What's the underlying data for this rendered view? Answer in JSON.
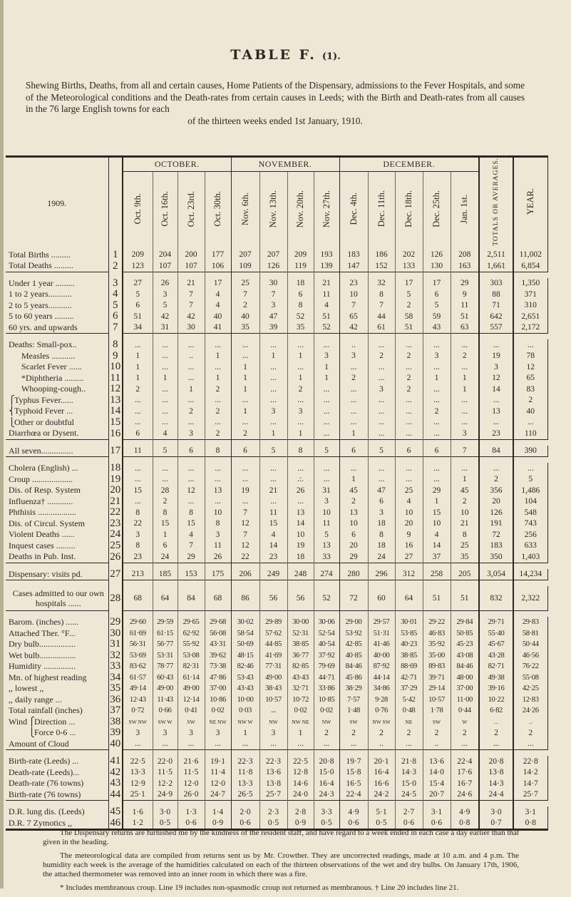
{
  "title": "TABLE F.",
  "title_suffix": "(1).",
  "intro": "Shewing Births, Deaths, from all and certain causes, Home Patients of the Dispensary, admissions to the Fever Hospitals, and some of the Meteorological conditions and the Death-rates from certain causes in Leeds; with the Birth and Death-rates from all causes in the 76 large English towns for each",
  "intro_last": "of the thirteen weeks ended 1st January, 1910.",
  "table": {
    "year_label": "1909.",
    "months": [
      "OCTOBER.",
      "NOVEMBER.",
      "DECEMBER."
    ],
    "columns": [
      "Oct.  9th.",
      "Oct.  16th.",
      "Oct.  23rd.",
      "Oct.  30th.",
      "Nov.  6th.",
      "Nov.  13th.",
      "Nov.  20th.",
      "Nov.  27th.",
      "Dec.  4th.",
      "Dec.  11th.",
      "Dec.  18th.",
      "Dec.  25th.",
      "Jan.  1st.",
      "TOTALS OR AVERAGES.",
      "YEAR."
    ],
    "rows": [
      {
        "n": "1",
        "label": "Total Births .........",
        "v": [
          "209",
          "204",
          "200",
          "177",
          "207",
          "207",
          "209",
          "193",
          "183",
          "186",
          "202",
          "126",
          "208",
          "2,511",
          "11,002"
        ]
      },
      {
        "n": "2",
        "label": "Total Deaths .........",
        "v": [
          "123",
          "107",
          "107",
          "106",
          "109",
          "126",
          "119",
          "139",
          "147",
          "152",
          "133",
          "130",
          "163",
          "1,661",
          "6,854"
        ]
      },
      {
        "n": "3",
        "label": "Under 1 year .........",
        "v": [
          "27",
          "26",
          "21",
          "17",
          "25",
          "30",
          "18",
          "21",
          "23",
          "32",
          "17",
          "17",
          "29",
          "303",
          "1,350"
        ],
        "sep": true
      },
      {
        "n": "4",
        "label": "1 to 2 years...........",
        "v": [
          "5",
          "3",
          "7",
          "4",
          "7",
          "7",
          "6",
          "11",
          "10",
          "8",
          "5",
          "6",
          "9",
          "88",
          "371"
        ]
      },
      {
        "n": "5",
        "label": "2 to 5 years...........",
        "v": [
          "6",
          "5",
          "7",
          "4",
          "2",
          "3",
          "8",
          "4",
          "7",
          "7",
          "2",
          "5",
          "11",
          "71",
          "310"
        ]
      },
      {
        "n": "6",
        "label": "5 to 60 years .........",
        "v": [
          "51",
          "42",
          "42",
          "40",
          "40",
          "47",
          "52",
          "51",
          "65",
          "44",
          "58",
          "59",
          "51",
          "642",
          "2,651"
        ]
      },
      {
        "n": "7",
        "label": "60 yrs. and upwards",
        "v": [
          "34",
          "31",
          "30",
          "41",
          "35",
          "39",
          "35",
          "52",
          "42",
          "61",
          "51",
          "43",
          "63",
          "557",
          "2,172"
        ]
      },
      {
        "n": "8",
        "label": "Deaths: Small-pox..",
        "v": [
          "...",
          "...",
          "...",
          "...",
          "...",
          "...",
          "...",
          "...",
          "..",
          "...",
          "...",
          "...",
          "...",
          "...",
          "..."
        ],
        "sep": true
      },
      {
        "n": "9",
        "label": "Measles ...........",
        "indent": true,
        "v": [
          "1",
          "...",
          "..",
          "1",
          "...",
          "1",
          "1",
          "3",
          "3",
          "2",
          "2",
          "3",
          "2",
          "19",
          "78"
        ]
      },
      {
        "n": "10",
        "label": "Scarlet Fever ......",
        "indent": true,
        "v": [
          "1",
          "...",
          "...",
          "...",
          "1",
          "...",
          "...",
          "1",
          "...",
          "...",
          "...",
          "...",
          "...",
          "3",
          "12"
        ]
      },
      {
        "n": "11",
        "label": "*Diphtheria .........",
        "indent": true,
        "v": [
          "1",
          "1",
          "...",
          "1",
          "1",
          "...",
          "1",
          "1",
          "2",
          "...",
          "2",
          "1",
          "1",
          "12",
          "65"
        ]
      },
      {
        "n": "12",
        "label": "Whooping-cough..",
        "indent": true,
        "v": [
          "2",
          "...",
          "1",
          "2",
          "1",
          "...",
          "2",
          "...",
          "...",
          "3",
          "2",
          "...",
          "1",
          "14",
          "83"
        ]
      },
      {
        "n": "13",
        "label": "Typhus Fever......",
        "brace": "⎧",
        "v": [
          "...",
          "...",
          "...",
          "...",
          "...",
          "...",
          "...",
          "...",
          "...",
          "...",
          "...",
          "...",
          "...",
          "...",
          "2"
        ]
      },
      {
        "n": "14",
        "label": "Typhoid Fever ...",
        "brace": "⎨",
        "v": [
          "...",
          "...",
          "2",
          "2",
          "1",
          "3",
          "3",
          "...",
          "...",
          "...",
          "...",
          "2",
          "...",
          "13",
          "40"
        ]
      },
      {
        "n": "15",
        "label": "Other or doubtful",
        "brace": "⎩",
        "v": [
          "...",
          "...",
          "...",
          "...",
          "...",
          "...",
          "...",
          "...",
          "...",
          "...",
          "...",
          "...",
          "...",
          "...",
          "..."
        ]
      },
      {
        "n": "16",
        "label": "Diarrhœa or Dysent.",
        "v": [
          "6",
          "4",
          "3",
          "2",
          "2",
          "1",
          "1",
          "...",
          "1",
          "...",
          "...",
          "...",
          "3",
          "23",
          "110"
        ]
      },
      {
        "n": "17",
        "label": "All seven...............",
        "v": [
          "11",
          "5",
          "6",
          "8",
          "6",
          "5",
          "8",
          "5",
          "6",
          "5",
          "6",
          "6",
          "7",
          "84",
          "390"
        ],
        "sep": true
      },
      {
        "n": "18",
        "label": "Cholera (English) ...",
        "v": [
          "...",
          "...",
          "...",
          "...",
          "...",
          "...",
          "...",
          "...",
          "...",
          "...",
          "...",
          "...",
          "...",
          "...",
          "..."
        ],
        "sep": true
      },
      {
        "n": "19",
        "label": "Croup ...................",
        "v": [
          "...",
          "...",
          "...",
          "...",
          "...",
          "...",
          ".:.",
          "...",
          "1",
          "...",
          "...",
          "...",
          "1",
          "2",
          "5"
        ]
      },
      {
        "n": "20",
        "label": "Dis. of Resp. System",
        "v": [
          "15",
          "28",
          "12",
          "13",
          "19",
          "21",
          "26",
          "31",
          "45",
          "47",
          "25",
          "29",
          "45",
          "356",
          "1,486"
        ]
      },
      {
        "n": "21",
        "label": "Influenza† ............",
        "v": [
          "...",
          "2",
          "...",
          "...",
          "...",
          "...",
          "...",
          "3",
          "2",
          "6",
          "4",
          "1",
          "2",
          "20",
          "104"
        ]
      },
      {
        "n": "22",
        "label": "Phthisis ..................",
        "v": [
          "8",
          "8",
          "8",
          "10",
          "7",
          "11",
          "13",
          "10",
          "13",
          "3",
          "10",
          "15",
          "10",
          "126",
          "548"
        ]
      },
      {
        "n": "23",
        "label": "Dis. of Circul. System",
        "v": [
          "22",
          "15",
          "15",
          "8",
          "12",
          "15",
          "14",
          "11",
          "10",
          "18",
          "20",
          "10",
          "21",
          "191",
          "743"
        ]
      },
      {
        "n": "24",
        "label": "Violent Deaths ......",
        "v": [
          "3",
          "1",
          "4",
          "3",
          "7",
          "4",
          "10",
          "5",
          "6",
          "8",
          "9",
          "4",
          "8",
          "72",
          "256"
        ]
      },
      {
        "n": "25",
        "label": "Inquest cases .........",
        "v": [
          "8",
          "6",
          "7",
          "11",
          "12",
          "14",
          "19",
          "13",
          "20",
          "18",
          "16",
          "14",
          "25",
          "183",
          "633"
        ]
      },
      {
        "n": "26",
        "label": "Deaths in Pub. Inst.",
        "v": [
          "23",
          "24",
          "29",
          "26",
          "22",
          "23",
          "18",
          "33",
          "29",
          "24",
          "27",
          "37",
          "35",
          "350",
          "1,403"
        ]
      },
      {
        "n": "27",
        "label": "Dispensary: visits pd.",
        "v": [
          "213",
          "185",
          "153",
          "175",
          "206",
          "249",
          "248",
          "274",
          "280",
          "296",
          "312",
          "258",
          "205",
          "3,054",
          "14,234"
        ],
        "sep": true
      },
      {
        "n": "28",
        "label": "Cases admitted to our own hospitals ......",
        "dbl": true,
        "v": [
          "68",
          "64",
          "84",
          "68",
          "86",
          "56",
          "56",
          "52",
          "72",
          "60",
          "64",
          "51",
          "51",
          "832",
          "2,322"
        ],
        "sep": true
      },
      {
        "n": "29",
        "label": "Barom. (inches) ......",
        "met": true,
        "v": [
          "29·60",
          "29·59",
          "29·65",
          "29·68",
          "30·02",
          "29·89",
          "30·00",
          "30·06",
          "29·00",
          "29·57",
          "30·01",
          "29·22",
          "29·84",
          "29·71",
          "29·83"
        ],
        "sep": true
      },
      {
        "n": "30",
        "label": "Attached Ther. °F...",
        "met": true,
        "v": [
          "61·69",
          "61·15",
          "62·92",
          "56·08",
          "58·54",
          "57·62",
          "52·31",
          "52·54",
          "53·92",
          "51·31",
          "53·85",
          "46·83",
          "50·85",
          "55·40",
          "58·81"
        ]
      },
      {
        "n": "31",
        "label": "Dry bulb.................",
        "met": true,
        "v": [
          "56·31",
          "56·77",
          "55·92",
          "43·31",
          "50·69",
          "44·85",
          "38·85",
          "40·54",
          "42·85",
          "41·46",
          "40·23",
          "35·92",
          "45·23",
          "45·67",
          "50·44"
        ]
      },
      {
        "n": "32",
        "label": "Wet bulb.................",
        "met": true,
        "v": [
          "53·69",
          "53·31",
          "53·08",
          "39·62",
          "48·15",
          "41·69",
          "36·77",
          "37·92",
          "40·85",
          "40·00",
          "38·85",
          "35·00",
          "43·08",
          "43·28",
          "46·56"
        ]
      },
      {
        "n": "33",
        "label": "Humidity ...............",
        "met": true,
        "v": [
          "83·62",
          "78·77",
          "82·31",
          "73·38",
          "82·46",
          "77·31",
          "82·85",
          "79·69",
          "84·46",
          "87·92",
          "88·69",
          "89·83",
          "84·46",
          "82·71",
          "76·22"
        ]
      },
      {
        "n": "34",
        "label": "Mn. of highest reading",
        "met": true,
        "v": [
          "61·57",
          "60·43",
          "61·14",
          "47·86",
          "53·43",
          "49·00",
          "43·43",
          "44·71",
          "45·86",
          "44·14",
          "42·71",
          "39·71",
          "48·00",
          "49·38",
          "55·08"
        ]
      },
      {
        "n": "35",
        "label": ",,   lowest       ,,",
        "met": true,
        "v": [
          "49·14",
          "49·00",
          "49·00",
          "37·00",
          "43·43",
          "38·43",
          "32·71",
          "33·86",
          "38·29",
          "34·86",
          "37·29",
          "29·14",
          "37·00",
          "39·16",
          "42·25"
        ]
      },
      {
        "n": "36",
        "label": ",,   daily range  ...",
        "met": true,
        "v": [
          "12·43",
          "11·43",
          "12·14",
          "10·86",
          "10·00",
          "10·57",
          "10·72",
          "10·85",
          "7·57",
          "9·28",
          "5·42",
          "10·57",
          "11·00",
          "10·22",
          "12·83"
        ]
      },
      {
        "n": "37",
        "label": "Total rainfall (inches)",
        "met": true,
        "v": [
          "0·72",
          "0·66",
          "0·41",
          "0·02",
          "0·03",
          "...",
          "0·02",
          "0·02",
          "1·48",
          "0·76",
          "0·48",
          "1·78",
          "0·44",
          "6·82",
          "24·26"
        ]
      },
      {
        "n": "38",
        "group": "Wind",
        "brace": "⎧",
        "label": "Direction ...",
        "wind": true,
        "v": [
          "SW NW",
          "SW W",
          "SW",
          "NE NW",
          "NW W",
          "NW",
          "NW NE",
          "NW",
          "SW",
          "NW SW",
          "NE",
          "SW",
          "W",
          "...",
          "..."
        ]
      },
      {
        "n": "39",
        "group": "",
        "brace": "⎩",
        "label": "Force 0-6 ...",
        "v": [
          "3",
          "3",
          "3",
          "3",
          "1",
          "3",
          "1",
          "2",
          "2",
          "2",
          "2",
          "2",
          "2",
          "2",
          "2"
        ]
      },
      {
        "n": "40",
        "label": "Amount of Cloud",
        "v": [
          "...",
          "...",
          "...",
          "...",
          "...",
          "...",
          "...",
          "...",
          "...",
          "..",
          "...",
          "..",
          "...",
          "...",
          "..."
        ]
      },
      {
        "n": "41",
        "label": "Birth-rate (Leeds) ...",
        "v": [
          "22·5",
          "22·0",
          "21·6",
          "19·1",
          "22·3",
          "22·3",
          "22·5",
          "20·8",
          "19·7",
          "20·1",
          "21·8",
          "13·6",
          "22·4",
          "20·8",
          "22·8"
        ],
        "sep": true
      },
      {
        "n": "42",
        "label": "Death-rate (Leeds)...",
        "v": [
          "13·3",
          "11·5",
          "11·5",
          "11·4",
          "11·8",
          "13·6",
          "12·8",
          "15·0",
          "15·8",
          "16·4",
          "14·3",
          "14·0",
          "17·6",
          "13·8",
          "14·2"
        ]
      },
      {
        "n": "43",
        "label": "Death-rate (76 towns)",
        "v": [
          "12·9",
          "12·2",
          "12·0",
          "12·0",
          "13·3",
          "13·8",
          "14·6",
          "16·4",
          "16·5",
          "16·6",
          "15·0",
          "15·4",
          "16·7",
          "14·3",
          "14·7"
        ]
      },
      {
        "n": "44",
        "label": "Birth-rate (76 towns)",
        "v": [
          "25·1",
          "24·9",
          "26·0",
          "24·7",
          "26·5",
          "25·7",
          "24·0",
          "24·3",
          "22·4",
          "24·2",
          "24·5",
          "20·7",
          "24·6",
          "24·4",
          "25·7"
        ]
      },
      {
        "n": "45",
        "label": "D.R. lung dis. (Leeds)",
        "v": [
          "1·6",
          "3·0",
          "1·3",
          "1·4",
          "2·0",
          "2·3",
          "2·8",
          "3·3",
          "4·9",
          "5·1",
          "2·7",
          "3·1",
          "4·9",
          "3·0",
          "3·1"
        ],
        "sep": true
      },
      {
        "n": "46",
        "label": "D.R. 7 Zymotics ,,",
        "v": [
          "1·2",
          "0·5",
          "0·6",
          "0·9",
          "0·6",
          "0·5",
          "0·9",
          "0·5",
          "0·6",
          "0·5",
          "0·6",
          "0·6",
          "0·8",
          "0·7",
          "0·8"
        ]
      }
    ]
  },
  "notes": [
    "The Dispensary returns are furnished me by the kindness of the resident staff, and have regard to a week ended in each case a day earlier than that given in the heading.",
    "The meteorological data are compiled from returns sent us by Mr. Crowther. They are uncorrected readings, made at 10 a.m. and 4 p.m. The humidity each week is the average of the humidities calculated on each of the thirteen observations of the wet and dry bulbs. On January 17th, 1906, the attached thermometer was removed into an inner room in which there was a fire.",
    "* Includes membranous croup. Line 19 includes non-spasmodic croup not returned as membranous. † Line 20 includes line 21."
  ]
}
